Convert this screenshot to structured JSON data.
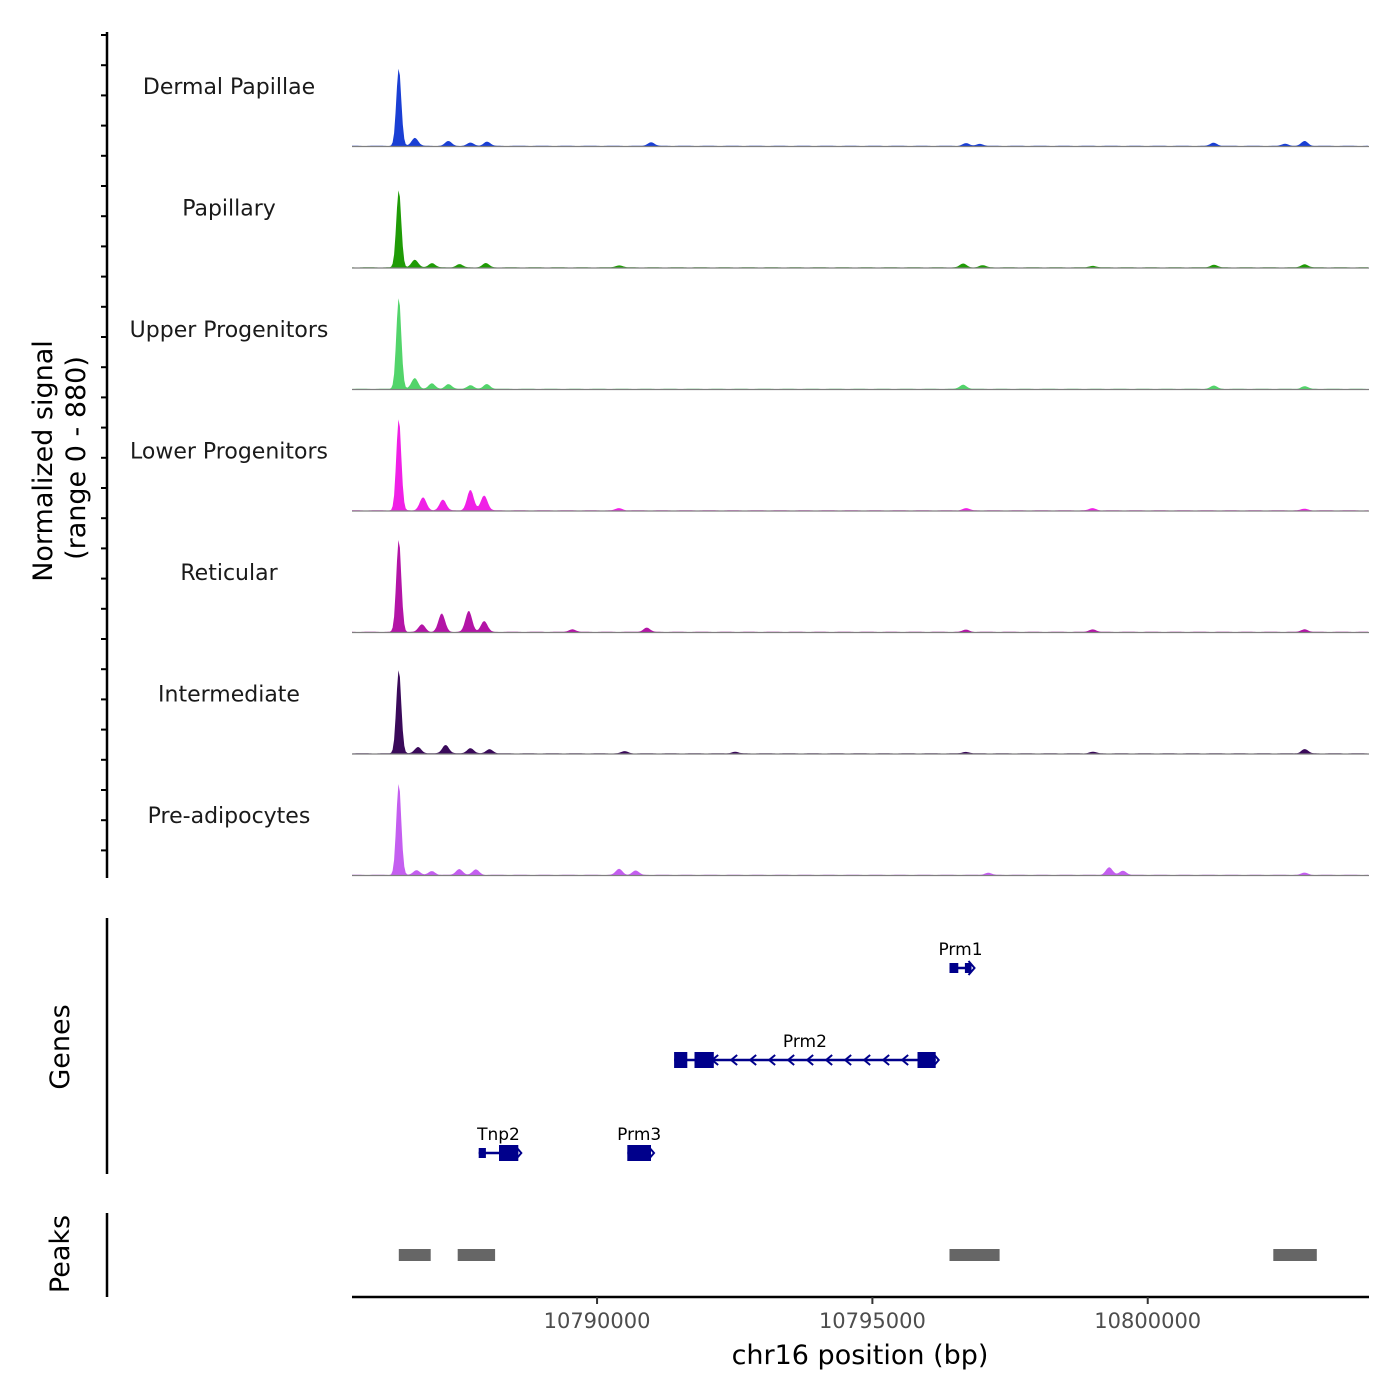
{
  "chart_data": {
    "type": "area",
    "title": "",
    "xlabel": "chr16 position (bp)",
    "ylabel_line1": "Normalized signal",
    "ylabel_line2": "(range 0 - 880)",
    "genes_label": "Genes",
    "peaks_label": "Peaks",
    "xlim": [
      10785550,
      10804000
    ],
    "ylim": [
      0,
      880
    ],
    "x_ticks": [
      {
        "value": 10790000,
        "label": "10790000"
      },
      {
        "value": 10795000,
        "label": "10795000"
      },
      {
        "value": 10800000,
        "label": "10800000"
      }
    ],
    "tracks": [
      {
        "name": "Dermal Papillae",
        "color": "#1a3fd4",
        "peaks": [
          [
            10786400,
            720
          ],
          [
            10786690,
            75
          ],
          [
            10787300,
            45
          ],
          [
            10787700,
            30
          ],
          [
            10788000,
            40
          ],
          [
            10790980,
            35
          ],
          [
            10796700,
            25
          ],
          [
            10796950,
            20
          ],
          [
            10801200,
            30
          ],
          [
            10802500,
            20
          ],
          [
            10802850,
            45
          ]
        ]
      },
      {
        "name": "Papillary",
        "color": "#1f9b06",
        "peaks": [
          [
            10786400,
            720
          ],
          [
            10786690,
            70
          ],
          [
            10787000,
            40
          ],
          [
            10787500,
            30
          ],
          [
            10787980,
            40
          ],
          [
            10790400,
            20
          ],
          [
            10796650,
            35
          ],
          [
            10797000,
            20
          ],
          [
            10799000,
            15
          ],
          [
            10801200,
            25
          ],
          [
            10802850,
            30
          ]
        ]
      },
      {
        "name": "Upper Progenitors",
        "color": "#52d46a",
        "peaks": [
          [
            10786400,
            850
          ],
          [
            10786690,
            100
          ],
          [
            10787000,
            50
          ],
          [
            10787300,
            45
          ],
          [
            10787700,
            35
          ],
          [
            10788000,
            45
          ],
          [
            10796650,
            40
          ],
          [
            10801200,
            30
          ],
          [
            10802850,
            25
          ]
        ]
      },
      {
        "name": "Lower Progenitors",
        "color": "#f020e6",
        "peaks": [
          [
            10786400,
            850
          ],
          [
            10786840,
            120
          ],
          [
            10787200,
            100
          ],
          [
            10787700,
            190
          ],
          [
            10787950,
            140
          ],
          [
            10790400,
            20
          ],
          [
            10796700,
            20
          ],
          [
            10799000,
            20
          ],
          [
            10802850,
            15
          ]
        ]
      },
      {
        "name": "Reticular",
        "color": "#b314a6",
        "peaks": [
          [
            10786400,
            860
          ],
          [
            10786820,
            70
          ],
          [
            10787180,
            170
          ],
          [
            10787670,
            195
          ],
          [
            10787950,
            100
          ],
          [
            10789550,
            25
          ],
          [
            10790900,
            40
          ],
          [
            10796700,
            20
          ],
          [
            10799000,
            25
          ],
          [
            10802850,
            25
          ]
        ]
      },
      {
        "name": "Intermediate",
        "color": "#3a0a5a",
        "peaks": [
          [
            10786400,
            780
          ],
          [
            10786750,
            60
          ],
          [
            10787250,
            80
          ],
          [
            10787700,
            50
          ],
          [
            10788050,
            40
          ],
          [
            10790500,
            20
          ],
          [
            10792500,
            15
          ],
          [
            10796700,
            15
          ],
          [
            10799000,
            15
          ],
          [
            10802850,
            40
          ]
        ]
      },
      {
        "name": "Pre-adipocytes",
        "color": "#c45ef0",
        "peaks": [
          [
            10786400,
            850
          ],
          [
            10786720,
            45
          ],
          [
            10787000,
            35
          ],
          [
            10787500,
            55
          ],
          [
            10787800,
            50
          ],
          [
            10790400,
            55
          ],
          [
            10790700,
            40
          ],
          [
            10797100,
            20
          ],
          [
            10799300,
            70
          ],
          [
            10799550,
            40
          ],
          [
            10802850,
            20
          ]
        ]
      }
    ],
    "genes": [
      {
        "name": "Prm1",
        "row": 1,
        "strand": "-",
        "start": 10796400,
        "end": 10796800,
        "exons": [
          [
            10796400,
            10796560
          ],
          [
            10796680,
            10796800
          ]
        ]
      },
      {
        "name": "Prm2",
        "row": 2,
        "strand": "-",
        "start": 10791400,
        "end": 10796150,
        "exons": [
          [
            10791400,
            10791640
          ],
          [
            10791770,
            10792120
          ],
          [
            10795820,
            10796150
          ]
        ]
      },
      {
        "name": "Tnp2",
        "row": 3,
        "strand": "-",
        "start": 10787850,
        "end": 10788570,
        "exons": [
          [
            10787850,
            10787980
          ],
          [
            10788220,
            10788570
          ]
        ]
      },
      {
        "name": "Prm3",
        "row": 3,
        "strand": "-",
        "start": 10790550,
        "end": 10790980,
        "exons": [
          [
            10790550,
            10790980
          ]
        ]
      }
    ],
    "peaks": [
      [
        10786400,
        10786980
      ],
      [
        10787470,
        10788150
      ],
      [
        10796400,
        10797310
      ],
      [
        10802280,
        10803070
      ]
    ],
    "peak_color": "#666666",
    "gene_color": "#00008b"
  }
}
